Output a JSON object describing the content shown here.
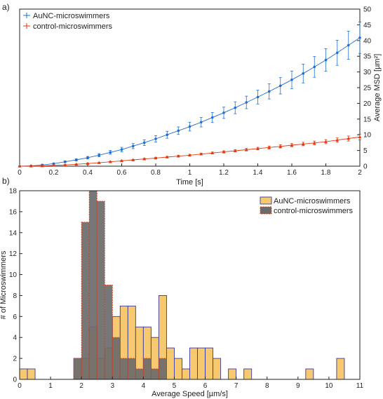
{
  "chart_data": [
    {
      "type": "line",
      "panel_label": "a)",
      "xlabel": "Time [s]",
      "ylabel": "Average MSD [µm²]",
      "xlim": [
        0,
        2
      ],
      "ylim": [
        0,
        50
      ],
      "xticks": [
        0,
        0.2,
        0.4,
        0.6,
        0.8,
        1,
        1.2,
        1.4,
        1.6,
        1.8,
        2
      ],
      "xtick_labels": [
        "0",
        "0.2",
        "0.4",
        "0.6",
        "0.8",
        "1",
        "1.2",
        "1.4",
        "1.6",
        "1.8",
        "2"
      ],
      "yticks": [
        0,
        5,
        10,
        15,
        20,
        25,
        30,
        35,
        40,
        45,
        50
      ],
      "ytick_labels": [
        "0",
        "5",
        "10",
        "15",
        "20",
        "25",
        "30",
        "35",
        "40",
        "45",
        "50"
      ],
      "y_axis_side": "right",
      "grid": false,
      "legend_position": "top-left",
      "series": [
        {
          "name": "AuNC-microswimmers",
          "color": "#1f6fd1",
          "marker": "dot",
          "x": [
            0,
            0.067,
            0.133,
            0.2,
            0.267,
            0.333,
            0.4,
            0.467,
            0.533,
            0.6,
            0.667,
            0.733,
            0.8,
            0.867,
            0.933,
            1.0,
            1.067,
            1.133,
            1.2,
            1.267,
            1.333,
            1.4,
            1.467,
            1.533,
            1.6,
            1.667,
            1.733,
            1.8,
            1.867,
            1.933,
            2.0
          ],
          "y": [
            0,
            0.1,
            0.4,
            0.8,
            1.4,
            2.0,
            2.7,
            3.5,
            4.4,
            5.3,
            6.4,
            7.5,
            8.7,
            10.0,
            11.3,
            12.6,
            14.0,
            15.5,
            17.0,
            18.6,
            20.3,
            22.0,
            23.8,
            25.6,
            27.5,
            29.5,
            31.6,
            33.8,
            36.1,
            38.5,
            40.9
          ],
          "err": [
            0,
            0.1,
            0.15,
            0.2,
            0.3,
            0.35,
            0.4,
            0.5,
            0.6,
            0.7,
            0.8,
            0.9,
            1.0,
            1.1,
            1.2,
            1.4,
            1.5,
            1.6,
            1.8,
            1.9,
            2.0,
            2.2,
            2.4,
            2.6,
            2.8,
            3.0,
            3.3,
            3.6,
            4.0,
            4.5,
            5.0
          ]
        },
        {
          "name": "control-microswimmers",
          "color": "#e03a10",
          "marker": "triangle",
          "x": [
            0,
            0.067,
            0.133,
            0.2,
            0.267,
            0.333,
            0.4,
            0.467,
            0.533,
            0.6,
            0.667,
            0.733,
            0.8,
            0.867,
            0.933,
            1.0,
            1.067,
            1.133,
            1.2,
            1.267,
            1.333,
            1.4,
            1.467,
            1.533,
            1.6,
            1.667,
            1.733,
            1.8,
            1.867,
            1.933,
            2.0
          ],
          "y": [
            0,
            0.05,
            0.1,
            0.25,
            0.4,
            0.6,
            0.85,
            1.1,
            1.4,
            1.7,
            2.0,
            2.3,
            2.6,
            2.9,
            3.2,
            3.5,
            3.85,
            4.2,
            4.55,
            4.9,
            5.25,
            5.6,
            5.95,
            6.3,
            6.7,
            7.05,
            7.4,
            7.8,
            8.3,
            8.8,
            9.3
          ],
          "err": [
            0,
            0.05,
            0.05,
            0.05,
            0.1,
            0.1,
            0.1,
            0.1,
            0.15,
            0.15,
            0.15,
            0.2,
            0.2,
            0.2,
            0.25,
            0.25,
            0.3,
            0.3,
            0.35,
            0.35,
            0.4,
            0.4,
            0.45,
            0.5,
            0.5,
            0.55,
            0.6,
            0.65,
            0.7,
            0.8,
            0.9
          ]
        }
      ]
    },
    {
      "type": "bar",
      "subtype": "histogram",
      "panel_label": "b)",
      "xlabel": "Average Speed [µm/s]",
      "ylabel": "# of Microswimmers",
      "xlim": [
        0,
        11
      ],
      "ylim": [
        0,
        18
      ],
      "bin_width": 0.25,
      "xticks": [
        0,
        1,
        2,
        3,
        4,
        5,
        6,
        7,
        8,
        9,
        10,
        11
      ],
      "xtick_labels": [
        "0",
        "1",
        "2",
        "3",
        "4",
        "5",
        "6",
        "7",
        "8",
        "9",
        "10",
        "11"
      ],
      "yticks": [
        0,
        2,
        4,
        6,
        8,
        10,
        12,
        14,
        16,
        18
      ],
      "ytick_labels": [
        "0",
        "2",
        "4",
        "6",
        "8",
        "10",
        "12",
        "14",
        "16",
        "18"
      ],
      "grid": false,
      "legend_position": "top-right",
      "series": [
        {
          "name": "AuNC-microswimmers",
          "fill": "#f6c96e",
          "edge": "#3a3aa0",
          "bin_starts": [
            0.0,
            0.25,
            1.75,
            2.0,
            2.25,
            2.5,
            2.75,
            3.0,
            3.25,
            3.5,
            3.75,
            4.0,
            4.25,
            4.5,
            4.75,
            5.0,
            5.25,
            5.5,
            5.75,
            6.0,
            6.25,
            6.75,
            7.25,
            9.25,
            10.25
          ],
          "counts": [
            1,
            1,
            2,
            2,
            5,
            2,
            3,
            6,
            7,
            7,
            5,
            5,
            4,
            8,
            3,
            2,
            1,
            3,
            3,
            3,
            2,
            1,
            1,
            1,
            2
          ]
        },
        {
          "name": "control-microswimmers",
          "fill": "#6b6b6b",
          "edge": "#e03a10",
          "bin_starts": [
            1.75,
            2.0,
            2.25,
            2.5,
            2.75,
            3.0,
            3.25,
            3.5,
            3.75,
            4.0,
            4.25,
            4.5
          ],
          "counts": [
            2,
            15,
            18,
            17,
            9,
            4,
            2,
            2,
            1,
            2,
            1,
            2
          ]
        }
      ]
    }
  ]
}
